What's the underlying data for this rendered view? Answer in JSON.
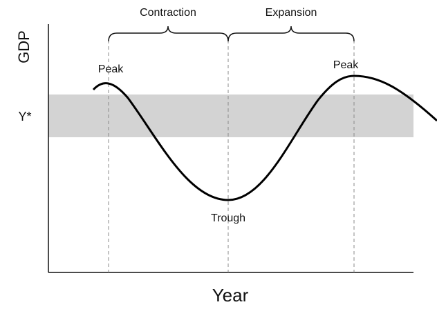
{
  "phases": [
    "Contraction",
    "Expansion"
  ],
  "points": [
    "Peak",
    "Trough",
    "Peak"
  ],
  "band_label": "Y*",
  "y_axis_label": "GDP",
  "x_axis_label": "Year"
}
